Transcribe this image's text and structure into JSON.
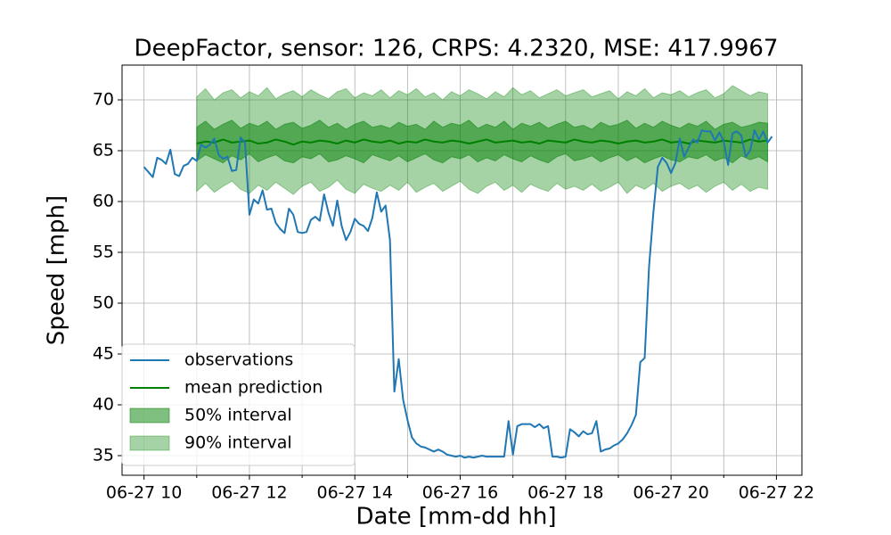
{
  "chart_data": {
    "type": "line",
    "title": "DeepFactor, sensor: 126, CRPS: 4.2320, MSE: 417.9967",
    "x_label": "Date [mm-dd hh]",
    "y_label": "Speed [mph]",
    "xlim": [
      575,
      1349
    ],
    "ylim": [
      33.07,
      73.42
    ],
    "xticks": [
      {
        "value": 600,
        "label": "06-27 10"
      },
      {
        "value": 720,
        "label": "06-27 12"
      },
      {
        "value": 840,
        "label": "06-27 14"
      },
      {
        "value": 960,
        "label": "06-27 16"
      },
      {
        "value": 1080,
        "label": "06-27 18"
      },
      {
        "value": 1200,
        "label": "06-27 20"
      },
      {
        "value": 1320,
        "label": "06-27 22"
      }
    ],
    "xminorticks": [
      660,
      780,
      900,
      1020,
      1140,
      1260
    ],
    "yticks": [
      35,
      40,
      45,
      50,
      55,
      60,
      65,
      70
    ],
    "grid": true,
    "legend": "lower left",
    "series": [
      {
        "name": "observations",
        "kind": "line",
        "color": "#1f77b4",
        "x": [
          600,
          605,
          610,
          615,
          620,
          625,
          630,
          635,
          640,
          645,
          650,
          655,
          660,
          665,
          670,
          675,
          680,
          685,
          690,
          695,
          700,
          705,
          710,
          715,
          720,
          725,
          730,
          735,
          740,
          745,
          750,
          755,
          760,
          765,
          770,
          775,
          780,
          785,
          790,
          795,
          800,
          805,
          810,
          815,
          820,
          825,
          830,
          835,
          840,
          845,
          850,
          855,
          860,
          865,
          870,
          875,
          880,
          885,
          890,
          895,
          900,
          905,
          910,
          915,
          920,
          925,
          930,
          935,
          940,
          945,
          950,
          955,
          960,
          965,
          970,
          975,
          980,
          985,
          990,
          995,
          1000,
          1005,
          1010,
          1015,
          1020,
          1025,
          1030,
          1035,
          1040,
          1045,
          1050,
          1055,
          1060,
          1065,
          1070,
          1075,
          1080,
          1085,
          1090,
          1095,
          1100,
          1105,
          1110,
          1115,
          1120,
          1125,
          1130,
          1135,
          1140,
          1145,
          1150,
          1155,
          1160,
          1165,
          1170,
          1175,
          1180,
          1185,
          1190,
          1195,
          1200,
          1205,
          1210,
          1215,
          1220,
          1225,
          1230,
          1235,
          1240,
          1245,
          1250,
          1255,
          1260,
          1265,
          1270,
          1275,
          1280,
          1285,
          1290,
          1295,
          1300,
          1305,
          1310,
          1315
        ],
        "values": [
          63.4,
          62.9,
          62.4,
          64.3,
          64.1,
          63.7,
          65.1,
          62.7,
          62.5,
          63.5,
          63.7,
          64.3,
          64.0,
          65.6,
          65.3,
          65.6,
          66.2,
          64.6,
          64.2,
          64.4,
          63.0,
          63.1,
          66.3,
          65.8,
          58.7,
          60.2,
          59.8,
          61.1,
          59.2,
          59.3,
          57.9,
          57.3,
          56.9,
          59.3,
          58.7,
          57.0,
          56.9,
          57.0,
          58.2,
          58.5,
          58.1,
          60.7,
          58.9,
          57.6,
          60.1,
          57.6,
          56.2,
          57.0,
          58.3,
          57.8,
          57.6,
          57.1,
          58.4,
          60.9,
          59.0,
          59.6,
          56.2,
          41.3,
          44.5,
          40.5,
          38.5,
          36.8,
          36.2,
          35.9,
          35.8,
          35.6,
          35.4,
          35.6,
          35.4,
          35.1,
          35.0,
          34.9,
          35.0,
          34.8,
          34.9,
          34.8,
          34.9,
          35.0,
          34.9,
          34.9,
          34.9,
          34.9,
          34.9,
          38.4,
          35.1,
          37.9,
          38.1,
          38.1,
          38.1,
          37.8,
          38.1,
          37.7,
          37.9,
          34.9,
          34.9,
          34.8,
          34.9,
          37.6,
          37.3,
          36.9,
          37.4,
          37.1,
          37.2,
          38.4,
          35.4,
          35.6,
          35.7,
          36.0,
          36.2,
          36.6,
          37.2,
          38.0,
          39.0,
          44.2,
          44.6,
          53.6,
          59.0,
          63.4,
          64.3,
          63.8,
          62.8,
          63.8,
          66.2,
          64.4,
          65.3,
          66.1,
          65.8,
          67.0,
          66.9,
          66.9,
          66.0,
          66.8,
          65.9,
          63.6,
          66.7,
          66.9,
          66.5,
          64.4,
          65.0,
          67.0,
          66.1,
          66.9,
          65.8,
          66.4
        ]
      },
      {
        "name": "mean prediction",
        "kind": "line",
        "color": "#008000",
        "x": [
          660,
          670,
          680,
          690,
          700,
          710,
          720,
          730,
          740,
          750,
          760,
          770,
          780,
          790,
          800,
          810,
          820,
          830,
          840,
          850,
          860,
          870,
          880,
          890,
          900,
          910,
          920,
          930,
          940,
          950,
          960,
          970,
          980,
          990,
          1000,
          1010,
          1020,
          1030,
          1040,
          1050,
          1060,
          1070,
          1080,
          1090,
          1100,
          1110,
          1120,
          1130,
          1140,
          1150,
          1160,
          1170,
          1180,
          1190,
          1200,
          1210,
          1220,
          1230,
          1240,
          1250,
          1260,
          1270,
          1280,
          1290,
          1300,
          1310
        ],
        "values": [
          65.7,
          65.9,
          65.8,
          66.1,
          65.8,
          65.9,
          66.0,
          65.7,
          65.8,
          66.1,
          65.9,
          65.6,
          65.9,
          65.8,
          66.0,
          65.9,
          65.7,
          66.0,
          65.8,
          66.1,
          65.9,
          65.8,
          66.0,
          65.7,
          65.9,
          65.8,
          66.1,
          65.9,
          65.8,
          66.0,
          65.9,
          65.7,
          65.9,
          66.1,
          65.8,
          65.9,
          66.0,
          65.8,
          65.9,
          65.7,
          66.0,
          65.9,
          65.8,
          66.1,
          65.9,
          65.8,
          66.0,
          65.9,
          65.7,
          65.9,
          66.0,
          65.8,
          65.9,
          66.1,
          65.8,
          65.9,
          65.7,
          66.0,
          65.9,
          65.8,
          66.0,
          65.9,
          65.8,
          66.1,
          65.9,
          66.0
        ]
      },
      {
        "name": "50% interval",
        "kind": "band",
        "color": "#008000",
        "opacity": 0.5,
        "x": [
          660,
          670,
          680,
          690,
          700,
          710,
          720,
          730,
          740,
          750,
          760,
          770,
          780,
          790,
          800,
          810,
          820,
          830,
          840,
          850,
          860,
          870,
          880,
          890,
          900,
          910,
          920,
          930,
          940,
          950,
          960,
          970,
          980,
          990,
          1000,
          1010,
          1020,
          1030,
          1040,
          1050,
          1060,
          1070,
          1080,
          1090,
          1100,
          1110,
          1120,
          1130,
          1140,
          1150,
          1160,
          1170,
          1180,
          1190,
          1200,
          1210,
          1220,
          1230,
          1240,
          1250,
          1260,
          1270,
          1280,
          1290,
          1300,
          1310
        ],
        "lower": [
          64.0,
          64.6,
          64.2,
          63.8,
          64.5,
          64.1,
          64.7,
          63.9,
          64.3,
          64.6,
          64.0,
          63.8,
          64.4,
          64.2,
          64.7,
          63.9,
          64.1,
          64.5,
          64.2,
          63.8,
          64.6,
          64.3,
          64.0,
          64.5,
          63.9,
          64.3,
          64.7,
          64.1,
          63.8,
          64.4,
          64.2,
          64.6,
          63.9,
          64.3,
          64.0,
          64.6,
          64.2,
          63.9,
          64.5,
          64.1,
          63.8,
          64.4,
          64.7,
          64.0,
          64.2,
          64.5,
          63.9,
          64.3,
          64.6,
          64.0,
          64.4,
          63.8,
          64.2,
          64.5,
          64.1,
          63.9,
          64.4,
          64.2,
          64.6,
          64.0,
          64.3,
          63.8,
          64.5,
          64.1,
          64.4,
          63.9
        ],
        "upper": [
          67.3,
          67.9,
          67.1,
          67.6,
          68.0,
          67.2,
          67.7,
          67.4,
          67.9,
          67.1,
          67.6,
          67.8,
          67.2,
          67.5,
          68.0,
          67.3,
          67.7,
          67.1,
          67.6,
          67.9,
          67.3,
          67.5,
          67.2,
          67.8,
          67.4,
          67.6,
          67.1,
          67.9,
          67.3,
          67.7,
          67.5,
          68.0,
          67.2,
          67.6,
          67.3,
          67.9,
          67.1,
          67.7,
          67.4,
          67.8,
          67.2,
          67.6,
          67.9,
          67.3,
          67.5,
          67.1,
          67.8,
          67.4,
          67.6,
          68.0,
          67.2,
          67.7,
          67.3,
          67.9,
          67.5,
          67.2,
          67.7,
          67.4,
          67.9,
          67.1,
          67.6,
          67.8,
          67.3,
          67.5,
          67.8,
          67.7
        ]
      },
      {
        "name": "90% interval",
        "kind": "band",
        "color": "#008000",
        "opacity": 0.35,
        "x": [
          660,
          670,
          680,
          690,
          700,
          710,
          720,
          730,
          740,
          750,
          760,
          770,
          780,
          790,
          800,
          810,
          820,
          830,
          840,
          850,
          860,
          870,
          880,
          890,
          900,
          910,
          920,
          930,
          940,
          950,
          960,
          970,
          980,
          990,
          1000,
          1010,
          1020,
          1030,
          1040,
          1050,
          1060,
          1070,
          1080,
          1090,
          1100,
          1110,
          1120,
          1130,
          1140,
          1150,
          1160,
          1170,
          1180,
          1190,
          1200,
          1210,
          1220,
          1230,
          1240,
          1250,
          1260,
          1270,
          1280,
          1290,
          1300,
          1310
        ],
        "lower": [
          61.0,
          61.8,
          60.9,
          61.5,
          62.0,
          61.2,
          60.8,
          61.6,
          61.1,
          61.9,
          61.3,
          60.7,
          61.5,
          61.9,
          61.0,
          61.4,
          62.1,
          61.2,
          60.8,
          61.7,
          61.3,
          61.0,
          61.6,
          61.1,
          61.9,
          60.9,
          61.4,
          61.8,
          61.0,
          61.5,
          62.0,
          61.2,
          60.8,
          61.5,
          61.9,
          61.1,
          61.6,
          60.9,
          61.7,
          61.3,
          61.0,
          61.8,
          61.2,
          61.5,
          61.1,
          61.7,
          61.0,
          61.4,
          61.9,
          60.8,
          61.6,
          61.2,
          61.8,
          61.0,
          61.5,
          61.8,
          61.2,
          61.6,
          60.9,
          61.5,
          61.9,
          61.1,
          61.7,
          61.0,
          61.4,
          61.2
        ],
        "upper": [
          70.3,
          71.1,
          70.0,
          70.7,
          71.0,
          70.2,
          70.8,
          70.4,
          71.2,
          70.1,
          70.6,
          70.9,
          70.3,
          71.0,
          70.5,
          70.1,
          70.8,
          71.1,
          70.2,
          70.7,
          70.4,
          71.0,
          70.2,
          70.9,
          70.5,
          71.1,
          70.3,
          70.7,
          70.0,
          70.8,
          70.4,
          71.0,
          70.6,
          70.1,
          70.8,
          70.3,
          71.2,
          70.5,
          70.9,
          70.2,
          70.6,
          71.0,
          70.4,
          70.7,
          71.0,
          70.3,
          70.6,
          70.9,
          70.1,
          70.8,
          70.4,
          71.1,
          70.2,
          70.7,
          70.5,
          70.9,
          70.3,
          70.7,
          71.0,
          70.2,
          70.6,
          71.4,
          70.9,
          70.4,
          70.8,
          70.6
        ]
      }
    ]
  }
}
